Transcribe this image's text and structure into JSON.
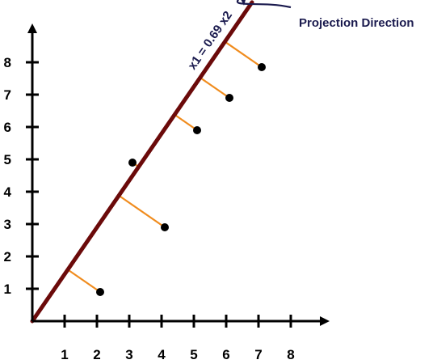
{
  "chart_data": {
    "type": "scatter",
    "x_ticks": [
      1,
      2,
      3,
      4,
      5,
      6,
      7,
      8
    ],
    "y_ticks": [
      1,
      2,
      3,
      4,
      5,
      6,
      7,
      8
    ],
    "xlim": [
      0,
      8.9
    ],
    "ylim": [
      0,
      8.9
    ],
    "grid": false,
    "points": [
      {
        "x": 2.1,
        "y": 0.9
      },
      {
        "x": 3.1,
        "y": 4.9
      },
      {
        "x": 4.1,
        "y": 2.9
      },
      {
        "x": 5.1,
        "y": 5.9
      },
      {
        "x": 6.1,
        "y": 6.9
      },
      {
        "x": 7.1,
        "y": 7.85
      }
    ],
    "projection_line": {
      "label": "x1 = 0.69 x2",
      "slope": 1.449,
      "x_range": [
        0,
        6.8
      ]
    },
    "annotation": {
      "text": "Projection Direction"
    },
    "colors": {
      "axis": "#000000",
      "point": "#000000",
      "projection_line": "#6b0a0a",
      "projection_segment": "#f08c1e",
      "callout": "#1a1a4e"
    }
  }
}
